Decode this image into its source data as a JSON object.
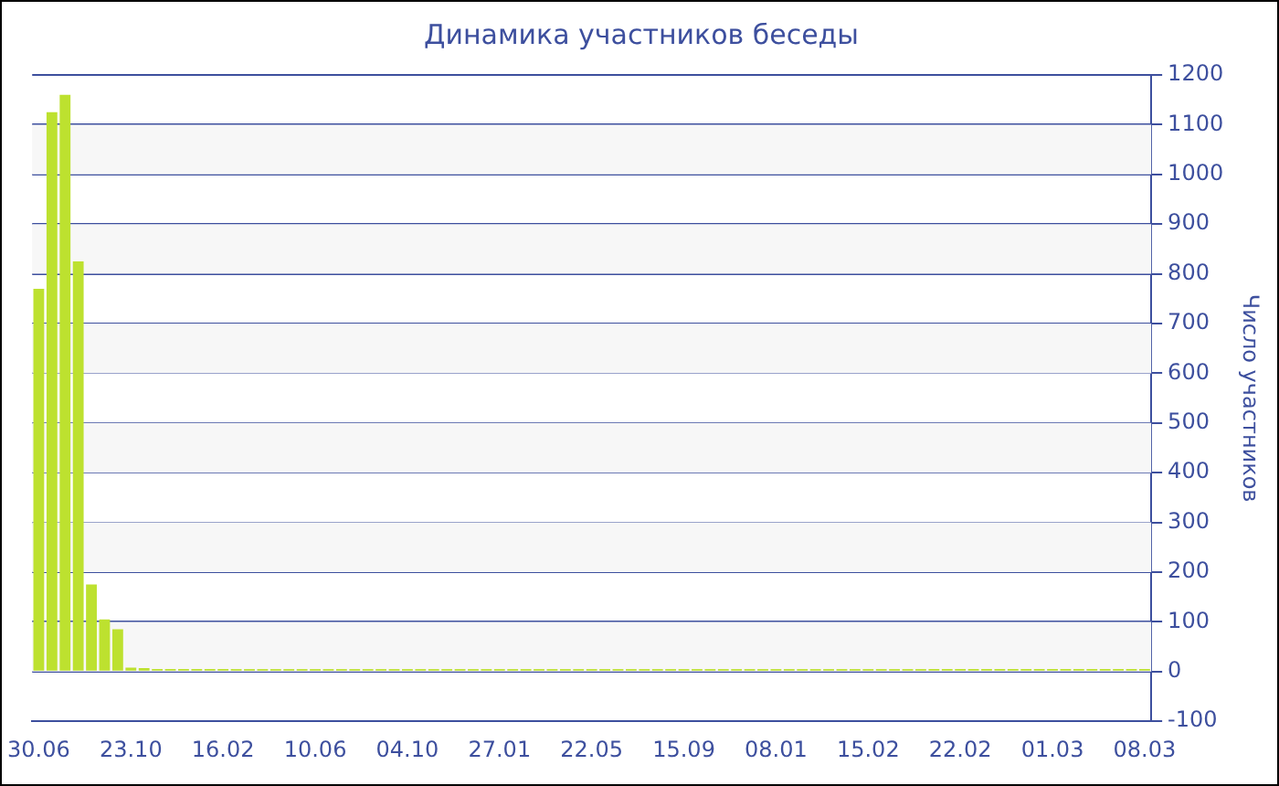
{
  "chart_data": {
    "type": "bar",
    "title": "Динамика участников беседы",
    "ylabel": "Число участников",
    "categories": [
      "30.06",
      null,
      null,
      null,
      null,
      null,
      null,
      "23.10",
      null,
      null,
      null,
      null,
      null,
      null,
      "16.02",
      null,
      null,
      null,
      null,
      null,
      null,
      "10.06",
      null,
      null,
      null,
      null,
      null,
      null,
      "04.10",
      null,
      null,
      null,
      null,
      null,
      null,
      "27.01",
      null,
      null,
      null,
      null,
      null,
      null,
      "22.05",
      null,
      null,
      null,
      null,
      null,
      null,
      "15.09",
      null,
      null,
      null,
      null,
      null,
      null,
      "08.01",
      null,
      null,
      null,
      null,
      null,
      null,
      "15.02",
      null,
      null,
      null,
      null,
      null,
      null,
      "22.02",
      null,
      null,
      null,
      null,
      null,
      null,
      "01.03",
      null,
      null,
      null,
      null,
      null,
      null,
      "08.03"
    ],
    "values": [
      770,
      1125,
      1160,
      825,
      175,
      105,
      85,
      8,
      7,
      5,
      5,
      5,
      5,
      5,
      5,
      5,
      5,
      5,
      5,
      5,
      5,
      5,
      5,
      5,
      5,
      5,
      5,
      5,
      5,
      5,
      5,
      5,
      5,
      5,
      5,
      5,
      5,
      5,
      5,
      5,
      5,
      5,
      5,
      5,
      5,
      5,
      5,
      5,
      5,
      5,
      5,
      5,
      5,
      5,
      5,
      5,
      5,
      5,
      5,
      5,
      5,
      5,
      5,
      5,
      5,
      5,
      5,
      5,
      5,
      5,
      5,
      5,
      5,
      5,
      5,
      5,
      5,
      5,
      5,
      5,
      5,
      5,
      5,
      5,
      5
    ],
    "color": "#bde12f",
    "ylim": [
      -100,
      1200
    ],
    "yticks": [
      -100,
      0,
      100,
      200,
      300,
      400,
      500,
      600,
      700,
      800,
      900,
      1000,
      1100,
      1200
    ],
    "grid": "y",
    "legend": false
  }
}
